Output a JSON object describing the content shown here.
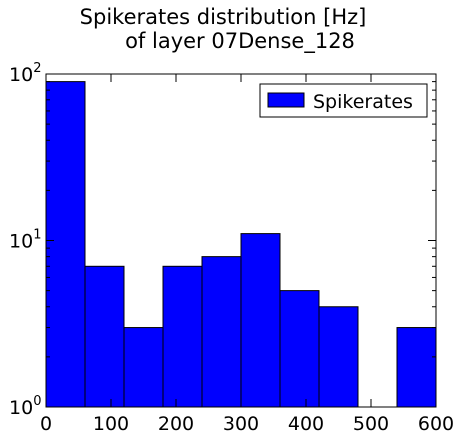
{
  "chart_data": {
    "type": "bar",
    "title_line1": "Spikerates distribution [Hz]",
    "title_line2": "of layer 07Dense_128",
    "xlabel": "",
    "ylabel": "",
    "yscale": "log",
    "xlim": [
      0,
      600
    ],
    "ylim": [
      1,
      100
    ],
    "x_ticks": [
      0,
      100,
      200,
      300,
      400,
      500,
      600
    ],
    "y_ticks": [
      {
        "value": 1,
        "base": "10",
        "exp": "0"
      },
      {
        "value": 10,
        "base": "10",
        "exp": "1"
      },
      {
        "value": 100,
        "base": "10",
        "exp": "2"
      }
    ],
    "grid": false,
    "legend": {
      "position": "top-right",
      "entries": [
        "Spikerates"
      ]
    },
    "series": [
      {
        "name": "Spikerates",
        "color": "#0000ff",
        "bins": [
          {
            "start": 0,
            "end": 60,
            "count": 90
          },
          {
            "start": 60,
            "end": 120,
            "count": 7
          },
          {
            "start": 120,
            "end": 180,
            "count": 3
          },
          {
            "start": 180,
            "end": 240,
            "count": 7
          },
          {
            "start": 240,
            "end": 300,
            "count": 8
          },
          {
            "start": 300,
            "end": 360,
            "count": 11
          },
          {
            "start": 360,
            "end": 420,
            "count": 5
          },
          {
            "start": 420,
            "end": 480,
            "count": 4
          },
          {
            "start": 480,
            "end": 540,
            "count": 0
          },
          {
            "start": 540,
            "end": 600,
            "count": 3
          }
        ]
      }
    ]
  }
}
